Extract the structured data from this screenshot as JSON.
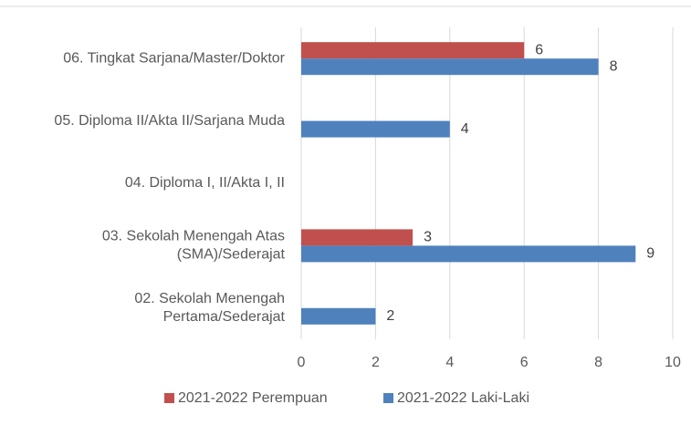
{
  "chart_data": {
    "type": "hbar",
    "categories": [
      [
        "06. Tingkat Sarjana/Master/Doktor"
      ],
      [
        "05. Diploma II/Akta II/Sarjana Muda"
      ],
      [
        "04. Diploma I, II/Akta I, II"
      ],
      [
        "03. Sekolah Menengah Atas",
        "(SMA)/Sederajat"
      ],
      [
        "02. Sekolah Menengah",
        "Pertama/Sederajat"
      ]
    ],
    "series": [
      {
        "name": "2021-2022 Perempuan",
        "color": "#c0504d",
        "values": [
          6,
          null,
          null,
          3,
          null
        ]
      },
      {
        "name": "2021-2022 Laki-Laki",
        "color": "#4f81bd",
        "values": [
          8,
          4,
          null,
          9,
          2
        ]
      }
    ],
    "xlim": [
      0,
      10
    ],
    "xticks": [
      0,
      2,
      4,
      6,
      8,
      10
    ],
    "grid": true
  }
}
